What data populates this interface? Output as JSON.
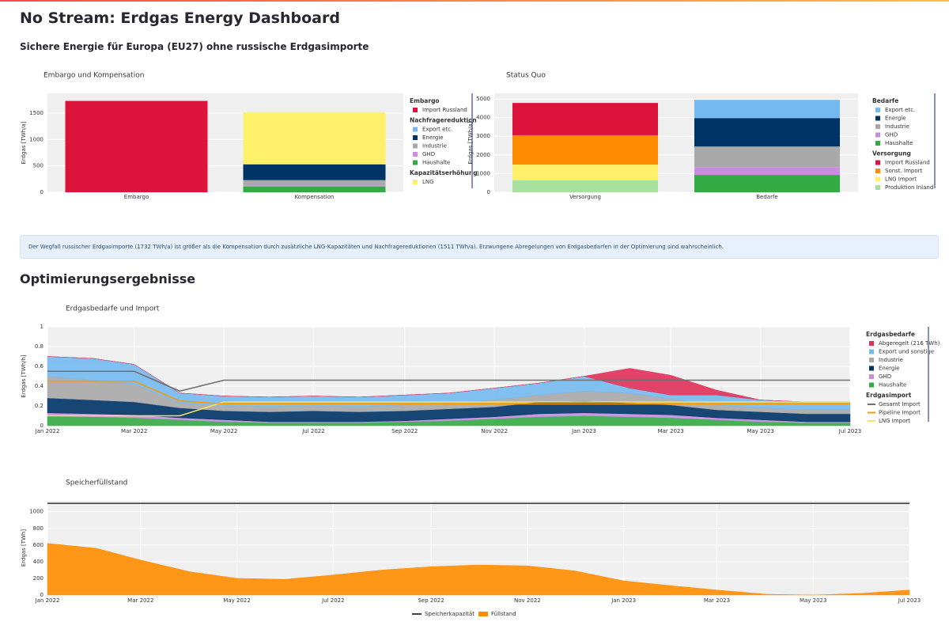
{
  "header": {
    "title": "No Stream: Erdgas Energy Dashboard",
    "subtitle": "Sichere Energie für Europa (EU27) ohne russische Erdgasimporte"
  },
  "info": "Der Wegfall russischer Erdgasimporte (1732 TWh/a) ist größer als die Kompensation durch zusätzliche LNG-Kapazitäten und Nachfragereduktionen (1511 TWh/a). Erzwungene Abregelungen von Erdgasbedarfen in der Optimierung sind wahrscheinlich.",
  "section": "Optimierungsergebnisse",
  "chart_data": [
    {
      "type": "bar",
      "title": "Embargo und Kompensation",
      "ylabel": "Erdgas [TWh/a]",
      "categories": [
        "Embargo",
        "Kompensation"
      ],
      "ylim": [
        0,
        1875
      ],
      "yticks": [
        0,
        500,
        1000,
        1500
      ],
      "grid": true,
      "legend": "right",
      "groups": [
        {
          "name": "Embargo",
          "series": [
            {
              "name": "Import Russland",
              "color": "#dc143c",
              "values": [
                1732,
                null
              ]
            }
          ]
        },
        {
          "name": "Nachfragereduktion",
          "series": [
            {
              "name": "Export etc.",
              "color": "#74b9f0",
              "values": [
                null,
                0
              ]
            },
            {
              "name": "Energie",
              "color": "#003366",
              "values": [
                null,
                300
              ]
            },
            {
              "name": "Industrie",
              "color": "#a9a9a9",
              "values": [
                null,
                100
              ]
            },
            {
              "name": "GHD",
              "color": "#c88de0",
              "values": [
                null,
                20
              ]
            },
            {
              "name": "Haushalte",
              "color": "#33aa44",
              "values": [
                null,
                110
              ]
            }
          ]
        },
        {
          "name": "Kapazitätserhöhung",
          "series": [
            {
              "name": "LNG",
              "color": "#fff06a",
              "values": [
                null,
                981
              ]
            }
          ]
        }
      ]
    },
    {
      "type": "bar",
      "title": "Status Quo",
      "ylabel": "Erdgas [TWh/a]",
      "categories": [
        "Versorgung",
        "Bedarfe"
      ],
      "ylim": [
        0,
        5300
      ],
      "yticks": [
        0,
        1000,
        2000,
        3000,
        4000,
        5000
      ],
      "grid": true,
      "legend": "right",
      "groups": [
        {
          "name": "Bedarfe",
          "series": [
            {
              "name": "Export etc.",
              "color": "#74b9f0",
              "values": [
                null,
                975
              ]
            },
            {
              "name": "Energie",
              "color": "#003366",
              "values": [
                null,
                1525
              ]
            },
            {
              "name": "Industrie",
              "color": "#a9a9a9",
              "values": [
                null,
                1100
              ]
            },
            {
              "name": "GHD",
              "color": "#c88de0",
              "values": [
                null,
                420
              ]
            },
            {
              "name": "Haushalte",
              "color": "#33aa44",
              "values": [
                null,
                930
              ]
            }
          ]
        },
        {
          "name": "Versorgung",
          "series": [
            {
              "name": "Import Russland",
              "color": "#dc143c",
              "values": [
                1732,
                null
              ]
            },
            {
              "name": "Sonst. Import",
              "color": "#ff8c00",
              "values": [
                1570,
                null
              ]
            },
            {
              "name": "LNG Import",
              "color": "#fff06a",
              "values": [
                850,
                null
              ]
            },
            {
              "name": "Produktion Inland",
              "color": "#a8e0a0",
              "values": [
                635,
                null
              ]
            }
          ]
        }
      ]
    },
    {
      "type": "area",
      "title": "Erdgasbedarfe und Import",
      "ylabel": "Erdgas [TWh/h]",
      "x": [
        "2022-01-01",
        "2022-02-01",
        "2022-03-01",
        "2022-04-01",
        "2022-05-01",
        "2022-06-01",
        "2022-07-01",
        "2022-08-01",
        "2022-09-01",
        "2022-10-01",
        "2022-11-01",
        "2022-12-01",
        "2023-01-01",
        "2023-02-01",
        "2023-03-01",
        "2023-04-01",
        "2023-05-01",
        "2023-06-01",
        "2023-07-01"
      ],
      "xlim": [
        "2022-01-01",
        "2023-07-01"
      ],
      "xticks": [
        {
          "value": "2022-01-01",
          "label": "Jan 2022"
        },
        {
          "value": "2022-03-01",
          "label": "Mar 2022"
        },
        {
          "value": "2022-05-01",
          "label": "May 2022"
        },
        {
          "value": "2022-07-01",
          "label": "Jul 2022"
        },
        {
          "value": "2022-09-01",
          "label": "Sep 2022"
        },
        {
          "value": "2022-11-01",
          "label": "Nov 2022"
        },
        {
          "value": "2023-01-01",
          "label": "Jan 2023"
        },
        {
          "value": "2023-03-01",
          "label": "Mar 2023"
        },
        {
          "value": "2023-05-01",
          "label": "May 2023"
        },
        {
          "value": "2023-07-01",
          "label": "Jul 2023"
        }
      ],
      "ylim": [
        0,
        1
      ],
      "yticks": [
        0,
        0.2,
        0.4,
        0.6,
        0.8,
        1
      ],
      "grid": true,
      "legend": "right",
      "groups": [
        {
          "name": "Erdgasbedarfe",
          "series": [
            {
              "name": "Abgeregelt (216 TWh)",
              "color": "#e0305a",
              "style": "area",
              "values": [
                0,
                0,
                0,
                0,
                0,
                0,
                0,
                0,
                0,
                0,
                0,
                0,
                0,
                0.2,
                0.2,
                0.05,
                0,
                0,
                0
              ]
            },
            {
              "name": "Export und sonstige",
              "color": "#74b9f0",
              "style": "area",
              "values": [
                0.2,
                0.22,
                0.2,
                0.1,
                0.1,
                0.1,
                0.1,
                0.1,
                0.1,
                0.1,
                0.12,
                0.12,
                0.15,
                0.05,
                0.04,
                0.1,
                0.08,
                0.08,
                0.08
              ]
            },
            {
              "name": "Industrie",
              "color": "#a9a9a9",
              "style": "area",
              "values": [
                0.22,
                0.2,
                0.18,
                0.05,
                0.05,
                0.05,
                0.05,
                0.05,
                0.06,
                0.06,
                0.07,
                0.07,
                0.1,
                0.1,
                0.06,
                0.05,
                0.04,
                0.04,
                0.04
              ]
            },
            {
              "name": "Energie",
              "color": "#003366",
              "style": "area",
              "values": [
                0.15,
                0.14,
                0.13,
                0.1,
                0.09,
                0.1,
                0.11,
                0.1,
                0.1,
                0.1,
                0.1,
                0.12,
                0.12,
                0.11,
                0.1,
                0.08,
                0.08,
                0.08,
                0.08
              ]
            },
            {
              "name": "GHD",
              "color": "#c88de0",
              "style": "area",
              "values": [
                0.03,
                0.03,
                0.03,
                0.02,
                0.02,
                0.01,
                0.01,
                0.01,
                0.01,
                0.02,
                0.02,
                0.03,
                0.03,
                0.03,
                0.03,
                0.02,
                0.02,
                0.01,
                0.01
              ]
            },
            {
              "name": "Haushalte",
              "color": "#33aa44",
              "style": "area",
              "values": [
                0.1,
                0.09,
                0.08,
                0.06,
                0.04,
                0.03,
                0.03,
                0.03,
                0.04,
                0.05,
                0.07,
                0.09,
                0.1,
                0.09,
                0.08,
                0.06,
                0.04,
                0.03,
                0.03
              ]
            }
          ]
        },
        {
          "name": "Erdgasimport",
          "series": [
            {
              "name": "Gesamt Import",
              "color": "#707070",
              "style": "line",
              "values": [
                0.55,
                0.55,
                0.55,
                0.35,
                0.46,
                0.46,
                0.46,
                0.46,
                0.46,
                0.46,
                0.46,
                0.46,
                0.46,
                0.46,
                0.46,
                0.46,
                0.46,
                0.46,
                0.46
              ]
            },
            {
              "name": "Pipeline Import",
              "color": "#ff9900",
              "style": "line",
              "values": [
                0.45,
                0.45,
                0.45,
                0.25,
                0.22,
                0.22,
                0.22,
                0.22,
                0.22,
                0.22,
                0.22,
                0.22,
                0.22,
                0.22,
                0.22,
                0.22,
                0.22,
                0.22,
                0.22
              ]
            },
            {
              "name": "LNG Import",
              "color": "#f8e060",
              "style": "line",
              "values": [
                0.1,
                0.1,
                0.1,
                0.1,
                0.24,
                0.24,
                0.24,
                0.24,
                0.24,
                0.24,
                0.24,
                0.24,
                0.24,
                0.24,
                0.24,
                0.24,
                0.24,
                0.24,
                0.24
              ]
            }
          ]
        }
      ]
    },
    {
      "type": "area",
      "title": "Speicherfüllstand",
      "ylabel": "Erdgas [TWh]",
      "x": [
        "2022-01-01",
        "2022-02-01",
        "2022-03-01",
        "2022-04-01",
        "2022-05-01",
        "2022-06-01",
        "2022-07-01",
        "2022-08-01",
        "2022-09-01",
        "2022-10-01",
        "2022-11-01",
        "2022-12-01",
        "2023-01-01",
        "2023-02-01",
        "2023-03-01",
        "2023-04-01",
        "2023-05-01",
        "2023-06-01",
        "2023-07-01"
      ],
      "xlim": [
        "2022-01-01",
        "2023-07-01"
      ],
      "xticks": [
        {
          "value": "2022-01-01",
          "label": "Jan 2022"
        },
        {
          "value": "2022-03-01",
          "label": "Mar 2022"
        },
        {
          "value": "2022-05-01",
          "label": "May 2022"
        },
        {
          "value": "2022-07-01",
          "label": "Jul 2022"
        },
        {
          "value": "2022-09-01",
          "label": "Sep 2022"
        },
        {
          "value": "2022-11-01",
          "label": "Nov 2022"
        },
        {
          "value": "2023-01-01",
          "label": "Jan 2023"
        },
        {
          "value": "2023-03-01",
          "label": "Mar 2023"
        },
        {
          "value": "2023-05-01",
          "label": "May 2023"
        },
        {
          "value": "2023-07-01",
          "label": "Jul 2023"
        }
      ],
      "ylim": [
        0,
        1130
      ],
      "yticks": [
        0,
        200,
        400,
        600,
        800,
        1000
      ],
      "grid": true,
      "legend": "bottom",
      "groups": [
        {
          "series": [
            {
              "name": "Speicherkapazität",
              "color": "#444444",
              "style": "line",
              "values": [
                1100,
                1100,
                1100,
                1100,
                1100,
                1100,
                1100,
                1100,
                1100,
                1100,
                1100,
                1100,
                1100,
                1100,
                1100,
                1100,
                1100,
                1100,
                1100
              ]
            },
            {
              "name": "Füllstand",
              "color": "#ff8c00",
              "style": "area",
              "values": [
                620,
                560,
                420,
                280,
                200,
                190,
                240,
                300,
                340,
                360,
                350,
                290,
                170,
                110,
                60,
                10,
                0,
                20,
                60
              ]
            }
          ]
        }
      ]
    }
  ]
}
